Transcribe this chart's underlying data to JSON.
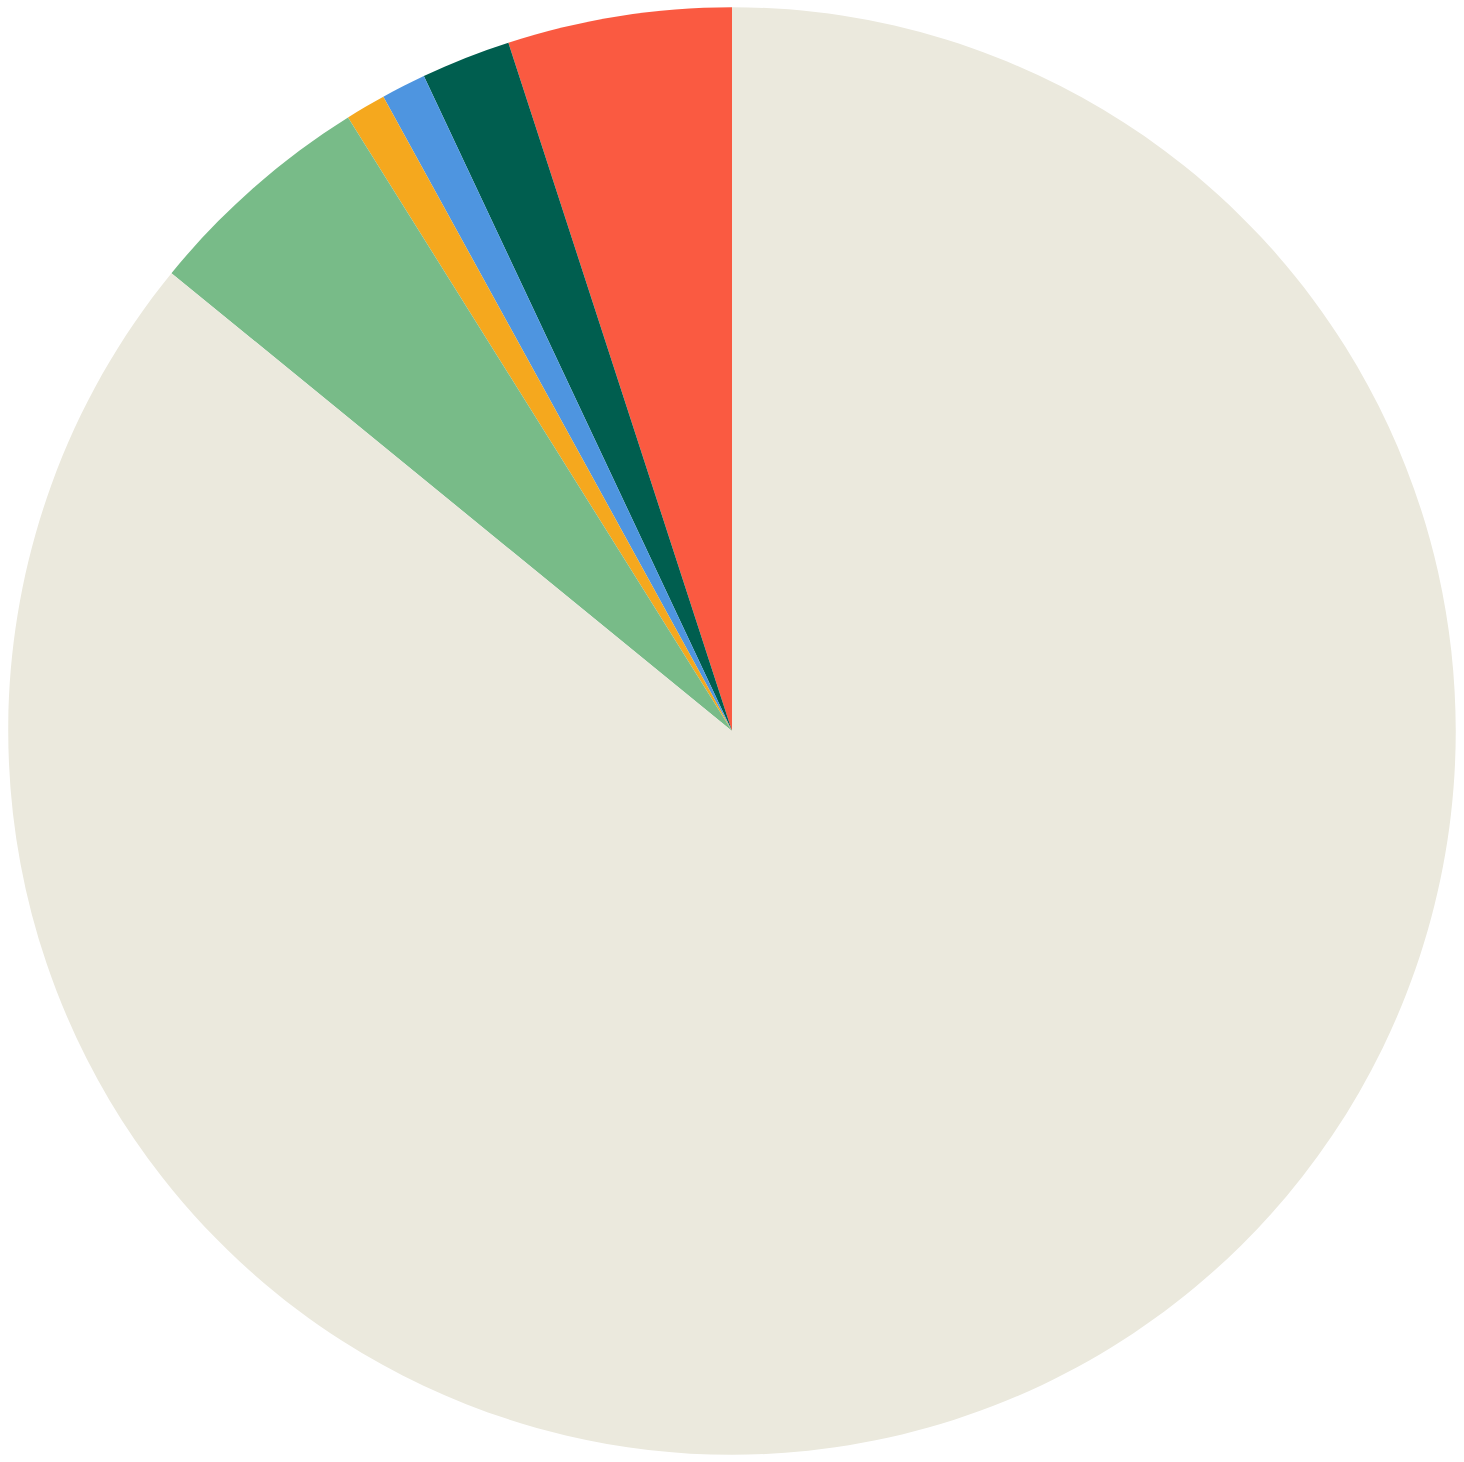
{
  "chart_data": {
    "type": "pie",
    "categories": [
      null,
      null,
      null,
      null,
      null,
      null
    ],
    "values": [
      5.0,
      2.0,
      1.0,
      0.9,
      5.2,
      85.9
    ],
    "colors": [
      "#fa5a41",
      "#005e4f",
      "#4e95e0",
      "#f5a81e",
      "#78bb88",
      "#ebe9dd"
    ]
  }
}
